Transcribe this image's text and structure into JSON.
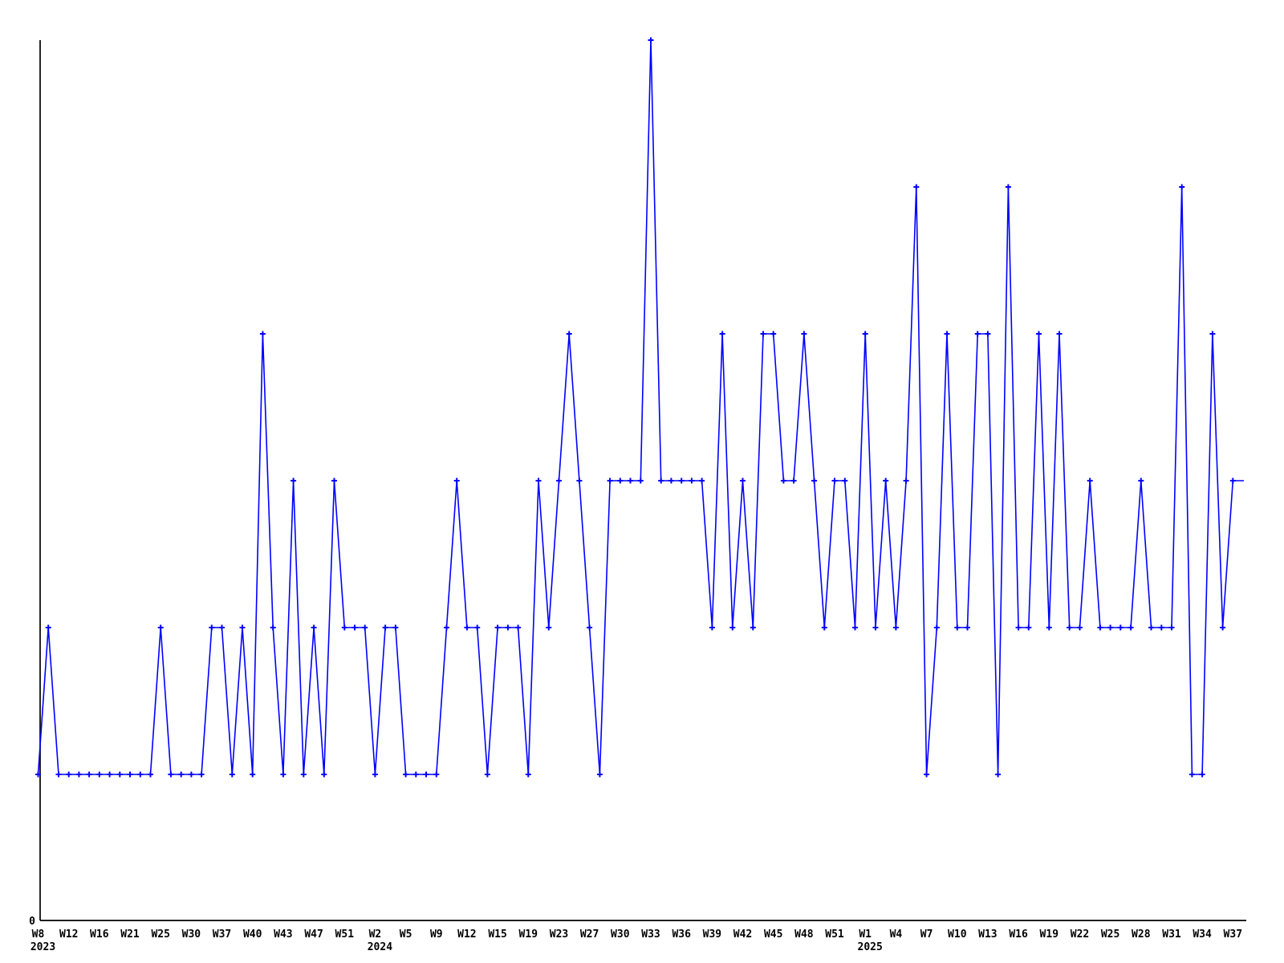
{
  "chart_data": {
    "type": "line",
    "title": "",
    "xlabel": "",
    "ylabel": "",
    "y_origin_label": "0",
    "ylim": [
      0,
      6
    ],
    "grid": false,
    "legend": null,
    "line_color": "#0000ff",
    "axis_color": "#000000",
    "marker_style": "plus",
    "x_axis_kind": "weekly-categories",
    "tick_every_n_points": 3,
    "x_ticks": [
      {
        "index": 0,
        "label": "W8",
        "year": "2023"
      },
      {
        "index": 3,
        "label": "W12"
      },
      {
        "index": 6,
        "label": "W16"
      },
      {
        "index": 9,
        "label": "W21"
      },
      {
        "index": 12,
        "label": "W25"
      },
      {
        "index": 15,
        "label": "W30"
      },
      {
        "index": 18,
        "label": "W37"
      },
      {
        "index": 21,
        "label": "W40"
      },
      {
        "index": 24,
        "label": "W43"
      },
      {
        "index": 27,
        "label": "W47"
      },
      {
        "index": 30,
        "label": "W51"
      },
      {
        "index": 33,
        "label": "W2",
        "year": "2024"
      },
      {
        "index": 36,
        "label": "W5"
      },
      {
        "index": 39,
        "label": "W9"
      },
      {
        "index": 42,
        "label": "W12"
      },
      {
        "index": 45,
        "label": "W15"
      },
      {
        "index": 48,
        "label": "W19"
      },
      {
        "index": 51,
        "label": "W23"
      },
      {
        "index": 54,
        "label": "W27"
      },
      {
        "index": 57,
        "label": "W30"
      },
      {
        "index": 60,
        "label": "W33"
      },
      {
        "index": 63,
        "label": "W36"
      },
      {
        "index": 66,
        "label": "W39"
      },
      {
        "index": 69,
        "label": "W42"
      },
      {
        "index": 72,
        "label": "W45"
      },
      {
        "index": 75,
        "label": "W48"
      },
      {
        "index": 78,
        "label": "W51"
      },
      {
        "index": 81,
        "label": "W1",
        "year": "2025"
      },
      {
        "index": 84,
        "label": "W4"
      },
      {
        "index": 87,
        "label": "W7"
      },
      {
        "index": 90,
        "label": "W10"
      },
      {
        "index": 93,
        "label": "W13"
      },
      {
        "index": 96,
        "label": "W16"
      },
      {
        "index": 99,
        "label": "W19"
      },
      {
        "index": 102,
        "label": "W22"
      },
      {
        "index": 105,
        "label": "W25"
      },
      {
        "index": 108,
        "label": "W28"
      },
      {
        "index": 111,
        "label": "W31"
      },
      {
        "index": 114,
        "label": "W34"
      },
      {
        "index": 117,
        "label": "W37"
      }
    ],
    "values": [
      1,
      2,
      1,
      1,
      1,
      1,
      1,
      1,
      1,
      1,
      1,
      1,
      2,
      1,
      1,
      1,
      1,
      2,
      2,
      1,
      2,
      1,
      4,
      2,
      1,
      3,
      1,
      2,
      1,
      3,
      2,
      2,
      2,
      1,
      2,
      2,
      1,
      1,
      1,
      1,
      2,
      3,
      2,
      2,
      1,
      2,
      2,
      2,
      1,
      3,
      2,
      3,
      4,
      3,
      2,
      1,
      3,
      3,
      3,
      3,
      6,
      3,
      3,
      3,
      3,
      3,
      2,
      4,
      2,
      3,
      2,
      4,
      4,
      3,
      3,
      4,
      3,
      2,
      3,
      3,
      2,
      4,
      2,
      3,
      2,
      3,
      5,
      1,
      2,
      4,
      2,
      2,
      4,
      4,
      1,
      5,
      2,
      2,
      4,
      2,
      4,
      2,
      2,
      3,
      2,
      2,
      2,
      2,
      3,
      2,
      2,
      2,
      5,
      1,
      1,
      4,
      2,
      3
    ]
  }
}
